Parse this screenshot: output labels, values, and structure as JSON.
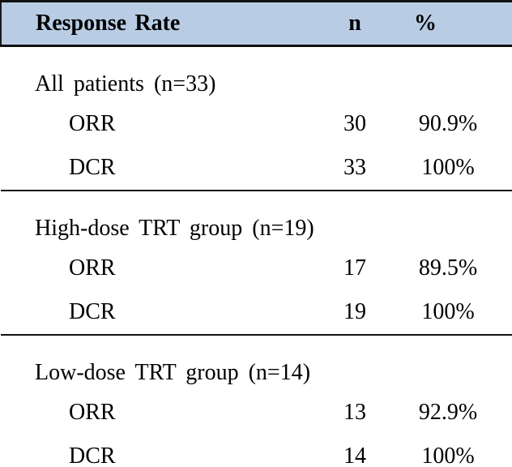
{
  "table": {
    "header": {
      "label": "Response Rate",
      "n": "n",
      "pct": "%"
    },
    "sections": [
      {
        "label": "All patients (n=33)",
        "rows": [
          {
            "name": "ORR",
            "n": "30",
            "pct": "90.9%"
          },
          {
            "name": "DCR",
            "n": "33",
            "pct": "100%"
          }
        ]
      },
      {
        "label": "High-dose TRT group (n=19)",
        "rows": [
          {
            "name": "ORR",
            "n": "17",
            "pct": "89.5%"
          },
          {
            "name": "DCR",
            "n": "19",
            "pct": "100%"
          }
        ]
      },
      {
        "label": "Low-dose TRT group (n=14)",
        "rows": [
          {
            "name": "ORR",
            "n": "13",
            "pct": "92.9%"
          },
          {
            "name": "DCR",
            "n": "14",
            "pct": "100%"
          }
        ]
      }
    ],
    "colors": {
      "header_bg": "#b8cce4",
      "rule": "#121212",
      "text": "#000000"
    }
  }
}
